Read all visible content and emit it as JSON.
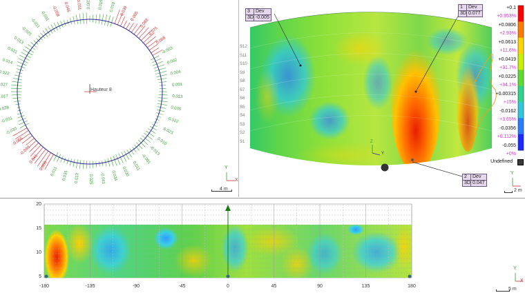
{
  "top_left_view": {
    "center_label": "Hauteur 8",
    "scale_label": "4 m",
    "axis_labels": {
      "y": "Y",
      "x": "X"
    },
    "deviation_labels_green": [
      "0.003",
      "0.016",
      "0.019",
      "-0.003",
      "0.002",
      "0.004",
      "0.001",
      "0.013",
      "0.035",
      "-0.022",
      "0.023",
      "0.010",
      "-0.013",
      "-0.001",
      "0.011",
      "0.030",
      "0.034",
      "-0.041",
      "0.025",
      "0.013",
      "0.035",
      "0.011",
      "-0.030",
      "-0.031",
      "0.028",
      "-0.017",
      "0.027",
      "0.022",
      "0.014",
      "0.021",
      "0.013",
      "-0.025",
      "-0.011",
      "0.031"
    ],
    "deviation_labels_red": [
      "0.030",
      "0.065",
      "0.082",
      "0.075",
      "0.058",
      "0.050",
      "0.041",
      "-0.040",
      "-0.065",
      "-0.058",
      "0.046",
      "0.031"
    ]
  },
  "top_right_view": {
    "axis_labels": {
      "z": "Z",
      "y": "Y"
    },
    "scale_label": "2 m",
    "callouts": [
      {
        "index": "3",
        "mode": "3D",
        "dev_header": "Dev",
        "dev_value": "-0.005"
      },
      {
        "index": "1",
        "mode": "3D",
        "dev_header": "Dev",
        "dev_value": "0.077"
      },
      {
        "index": "2",
        "mode": "3D",
        "dev_header": "Dev",
        "dev_value": "0.047"
      }
    ],
    "row_labels": [
      "S12",
      "S11",
      "S10",
      "S9",
      "S8",
      "S7",
      "S6",
      "S5",
      "S4",
      "S3",
      "S2",
      "S1"
    ],
    "legend": {
      "values_black": [
        "+0.1",
        "+0.0806",
        "+0.0613",
        "+0.0419",
        "+0.0225",
        "+0.00315",
        "-0.0162",
        "-0.0356",
        "-0.055"
      ],
      "values_pink": [
        "+0.953%",
        "+2.93%",
        "+11.6%",
        "+31.7%",
        "+34.1%",
        "+15%",
        "+3.65%",
        "+0.112%",
        "+0%"
      ],
      "undefined_label": "Undefined",
      "colors": [
        "#ff0000",
        "#ff7a00",
        "#ffd400",
        "#c8f000",
        "#5ddc30",
        "#2fd58a",
        "#2ec8e0",
        "#2a7cff",
        "#1a2aff"
      ]
    }
  },
  "bottom_view": {
    "x_ticks": [
      "-180",
      "-135",
      "-90",
      "-45",
      "0",
      "45",
      "90",
      "135",
      "180"
    ],
    "y_ticks": [
      "20",
      "15",
      "10",
      "5"
    ],
    "axis_labels": {
      "y": "Y",
      "x": "X"
    },
    "scale_label": "5 m"
  }
}
